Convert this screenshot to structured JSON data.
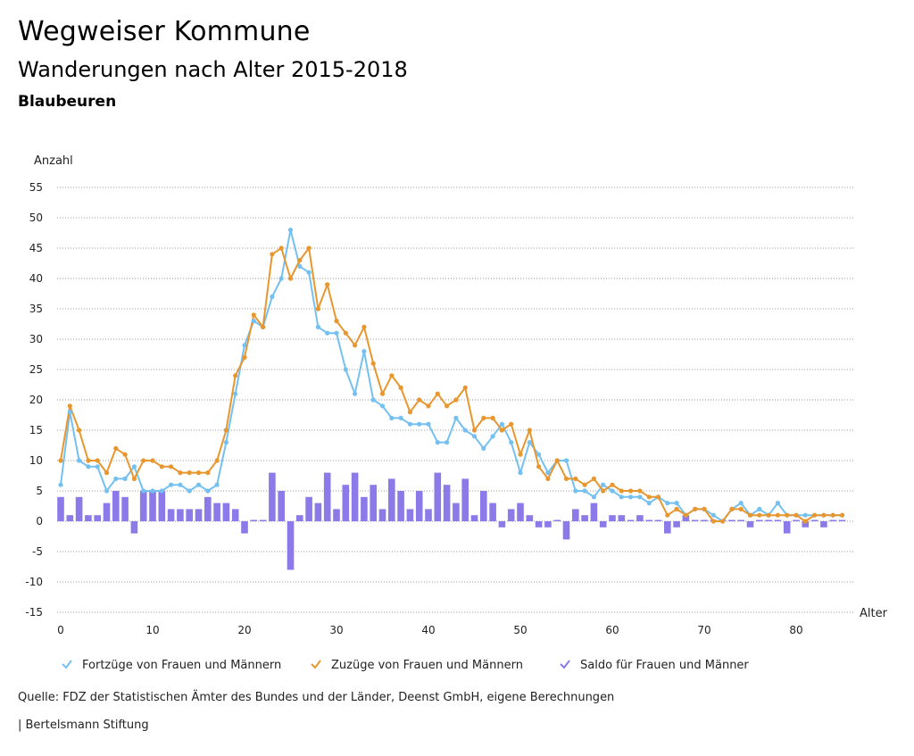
{
  "header": {
    "title": "Wegweiser Kommune",
    "subtitle": "Wanderungen nach Alter 2015-2018",
    "place": "Blaubeuren"
  },
  "footer": {
    "source": "Quelle: FDZ der Statistischen Ämter des Bundes und der Länder, Deenst GmbH, eigene Berechnungen",
    "brand": "| Bertelsmann Stiftung"
  },
  "chart_data": {
    "type": "line",
    "title": "Wanderungen nach Alter 2015-2018",
    "ylabel": "Anzahl",
    "xlabel": "Alter",
    "ylim": [
      -15,
      55
    ],
    "xlim": [
      0,
      85
    ],
    "y_ticks": [
      55,
      50,
      45,
      40,
      35,
      30,
      25,
      20,
      15,
      10,
      5,
      0,
      -5,
      -10,
      -15
    ],
    "x_ticks": [
      0,
      10,
      20,
      30,
      40,
      50,
      60,
      70,
      80
    ],
    "grid": true,
    "legend_position": "bottom",
    "colors": {
      "fortzuege": "#74c0f0",
      "zuzuege": "#e8962e",
      "saldo": "#8b7ae8",
      "grid": "#9a9a9a"
    },
    "series": [
      {
        "name": "Fortzüge von Frauen und Männern",
        "kind": "line",
        "values": [
          6,
          18,
          10,
          9,
          9,
          5,
          7,
          7,
          9,
          5,
          5,
          5,
          6,
          6,
          5,
          6,
          5,
          6,
          13,
          21,
          29,
          33,
          32,
          37,
          40,
          48,
          42,
          41,
          32,
          31,
          31,
          25,
          21,
          28,
          20,
          19,
          17,
          17,
          16,
          16,
          16,
          13,
          13,
          17,
          15,
          14,
          12,
          14,
          16,
          13,
          8,
          13,
          11,
          8,
          10,
          10,
          5,
          5,
          4,
          6,
          5,
          4,
          4,
          4,
          3,
          4,
          3,
          3,
          1,
          2,
          2,
          1,
          0,
          2,
          3,
          1,
          2,
          1,
          3,
          1,
          1,
          1,
          1,
          1,
          1,
          1
        ]
      },
      {
        "name": "Zuzüge von Frauen und Männern",
        "kind": "line",
        "values": [
          10,
          19,
          15,
          10,
          10,
          8,
          12,
          11,
          7,
          10,
          10,
          9,
          9,
          8,
          8,
          8,
          8,
          10,
          15,
          24,
          27,
          34,
          32,
          44,
          45,
          40,
          43,
          45,
          35,
          39,
          33,
          31,
          29,
          32,
          26,
          21,
          24,
          22,
          18,
          20,
          19,
          21,
          19,
          20,
          22,
          15,
          17,
          17,
          15,
          16,
          11,
          15,
          9,
          7,
          10,
          7,
          7,
          6,
          7,
          5,
          6,
          5,
          5,
          5,
          4,
          4,
          1,
          2,
          1,
          2,
          2,
          0,
          0,
          2,
          2,
          1,
          1,
          1,
          1,
          1,
          1,
          0,
          1,
          1,
          1,
          1
        ]
      },
      {
        "name": "Saldo für Frauen und Männer",
        "kind": "bar",
        "values": [
          4,
          1,
          4,
          1,
          1,
          3,
          5,
          4,
          -2,
          5,
          5,
          5,
          2,
          2,
          2,
          2,
          4,
          3,
          3,
          2,
          -2,
          0,
          0,
          8,
          5,
          -8,
          1,
          4,
          3,
          8,
          2,
          6,
          8,
          4,
          6,
          2,
          7,
          5,
          2,
          5,
          2,
          8,
          6,
          3,
          7,
          1,
          5,
          3,
          -1,
          2,
          3,
          1,
          -1,
          -1,
          0,
          -3,
          2,
          1,
          3,
          -1,
          1,
          1,
          0,
          1,
          0,
          0,
          -2,
          -1,
          1,
          0,
          0,
          0,
          0,
          0,
          0,
          -1,
          0,
          0,
          0,
          -2,
          0,
          -1,
          0,
          -1,
          0,
          0
        ]
      }
    ]
  }
}
